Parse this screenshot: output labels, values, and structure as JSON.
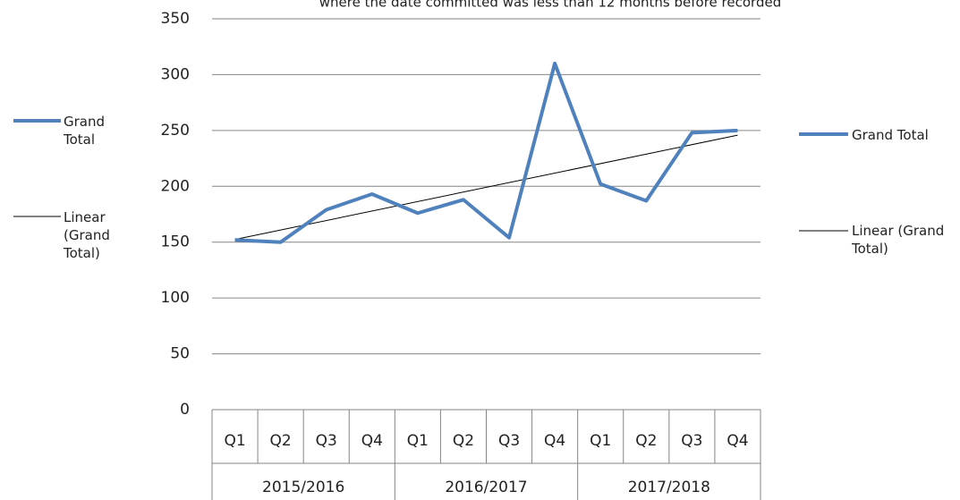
{
  "chart_data": {
    "type": "line",
    "title": "where the date committed was less than 12 months before recorded",
    "categories": [
      "Q1",
      "Q2",
      "Q3",
      "Q4",
      "Q1",
      "Q2",
      "Q3",
      "Q4",
      "Q1",
      "Q2",
      "Q3",
      "Q4"
    ],
    "category_groups": [
      "2015/2016",
      "2016/2017",
      "2017/2018"
    ],
    "series": [
      {
        "name": "Grand Total",
        "color": "#4f81bd",
        "values": [
          152,
          150,
          179,
          193,
          176,
          188,
          154,
          310,
          202,
          187,
          248,
          250
        ]
      }
    ],
    "trendline": {
      "type": "linear",
      "name": "Linear (Grand Total)",
      "color": "#000000"
    },
    "ylim": [
      0,
      350
    ],
    "yticks": [
      0,
      50,
      100,
      150,
      200,
      250,
      300,
      350
    ],
    "grid": true
  }
}
